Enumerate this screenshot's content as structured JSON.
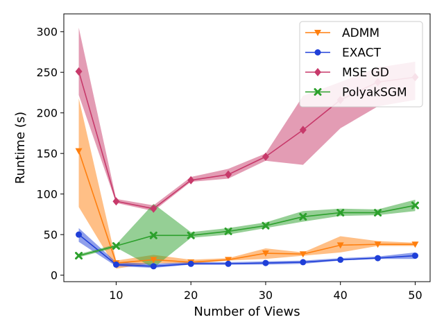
{
  "chart_data": {
    "type": "line",
    "xlabel": "Number of Views",
    "ylabel": "Runtime (s)",
    "xlim": [
      3,
      52
    ],
    "ylim": [
      -8,
      322
    ],
    "x_ticks": [
      10,
      20,
      30,
      40,
      50
    ],
    "y_ticks": [
      0,
      50,
      100,
      150,
      200,
      250,
      300
    ],
    "grid": false,
    "legend_position": "top-right",
    "x": [
      5,
      10,
      15,
      20,
      25,
      30,
      35,
      40,
      45,
      50
    ],
    "series": [
      {
        "name": "ADMM",
        "color": "#ff7f0e",
        "marker": "triangle-down",
        "values": [
          153,
          15,
          19,
          16,
          19,
          27,
          26,
          37,
          38,
          38
        ],
        "lower": [
          84,
          8,
          15,
          14,
          18,
          20,
          24,
          28,
          36,
          36
        ],
        "upper": [
          218,
          18,
          25,
          19,
          21,
          33,
          28,
          48,
          42,
          40
        ]
      },
      {
        "name": "EXACT",
        "color": "#1f3fd8",
        "marker": "circle",
        "values": [
          50,
          13,
          11,
          14,
          14,
          15,
          16,
          19,
          21,
          24
        ],
        "lower": [
          41,
          11,
          9,
          13,
          13,
          13,
          14,
          18,
          20,
          20
        ],
        "upper": [
          58,
          16,
          14,
          16,
          16,
          17,
          18,
          21,
          23,
          28
        ]
      },
      {
        "name": "MSE GD",
        "color": "#c7396a",
        "marker": "diamond",
        "values": [
          251,
          91,
          82,
          117,
          124,
          146,
          179,
          216,
          238,
          244
        ],
        "lower": [
          222,
          89,
          79,
          115,
          119,
          141,
          136,
          181,
          208,
          216
        ],
        "upper": [
          305,
          94,
          86,
          121,
          131,
          150,
          221,
          238,
          256,
          263
        ]
      },
      {
        "name": "PolyakSGM",
        "color": "#2ca02c",
        "marker": "x",
        "values": [
          24,
          36,
          49,
          49,
          54,
          61,
          72,
          77,
          77,
          86
        ],
        "lower": [
          22,
          34,
          9,
          46,
          50,
          58,
          66,
          73,
          74,
          79
        ],
        "upper": [
          26,
          38,
          88,
          53,
          58,
          65,
          79,
          82,
          81,
          93
        ]
      }
    ]
  }
}
